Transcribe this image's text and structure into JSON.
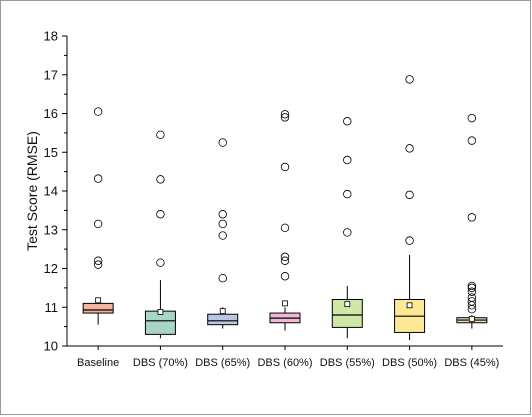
{
  "chart_data": {
    "type": "box",
    "ylabel": "Test Score (RMSE)",
    "xlabel": "",
    "ylim": [
      10,
      18
    ],
    "yticks": [
      "10",
      "11",
      "12",
      "13",
      "14",
      "15",
      "16",
      "17",
      "18"
    ],
    "grid": false,
    "categories": [
      "Baseline",
      "DBS (70%)",
      "DBS (65%)",
      "DBS (60%)",
      "DBS (55%)",
      "DBS (50%)",
      "DBS (45%)"
    ],
    "boxes": [
      {
        "category": "Baseline",
        "whisker_low": 10.55,
        "q1": 10.85,
        "median": 10.93,
        "q3": 11.1,
        "whisker_high": 11.2,
        "mean": 11.18,
        "outliers": [
          12.1,
          12.2,
          13.15,
          14.32,
          16.05
        ],
        "color": "#f4b39b"
      },
      {
        "category": "DBS (70%)",
        "whisker_low": 10.2,
        "q1": 10.3,
        "median": 10.65,
        "q3": 10.9,
        "whisker_high": 11.7,
        "mean": 10.88,
        "outliers": [
          12.15,
          13.4,
          14.3,
          15.45
        ],
        "color": "#a8d5c6"
      },
      {
        "category": "DBS (65%)",
        "whisker_low": 10.45,
        "q1": 10.55,
        "median": 10.65,
        "q3": 10.82,
        "whisker_high": 11.0,
        "mean": 10.9,
        "outliers": [
          11.75,
          12.85,
          13.15,
          13.4,
          15.25
        ],
        "color": "#b9c7e2"
      },
      {
        "category": "DBS (60%)",
        "whisker_low": 10.4,
        "q1": 10.6,
        "median": 10.72,
        "q3": 10.85,
        "whisker_high": 11.0,
        "mean": 11.1,
        "outliers": [
          11.8,
          12.2,
          12.3,
          13.05,
          14.62,
          15.9,
          15.98
        ],
        "color": "#f1b8d8"
      },
      {
        "category": "DBS (55%)",
        "whisker_low": 10.2,
        "q1": 10.48,
        "median": 10.8,
        "q3": 11.2,
        "whisker_high": 11.55,
        "mean": 11.08,
        "outliers": [
          12.93,
          13.92,
          14.8,
          15.8
        ],
        "color": "#cfe8a8"
      },
      {
        "category": "DBS (50%)",
        "whisker_low": 10.15,
        "q1": 10.35,
        "median": 10.77,
        "q3": 11.2,
        "whisker_high": 12.35,
        "mean": 11.05,
        "outliers": [
          12.72,
          13.9,
          15.1,
          16.88
        ],
        "color": "#fde895"
      },
      {
        "category": "DBS (45%)",
        "whisker_low": 10.45,
        "q1": 10.6,
        "median": 10.67,
        "q3": 10.73,
        "whisker_high": 10.8,
        "mean": 10.7,
        "outliers": [
          10.95,
          11.05,
          11.15,
          11.25,
          11.4,
          11.5,
          11.55,
          13.32,
          15.3,
          15.88
        ],
        "color": "#f0d9b5"
      }
    ]
  }
}
